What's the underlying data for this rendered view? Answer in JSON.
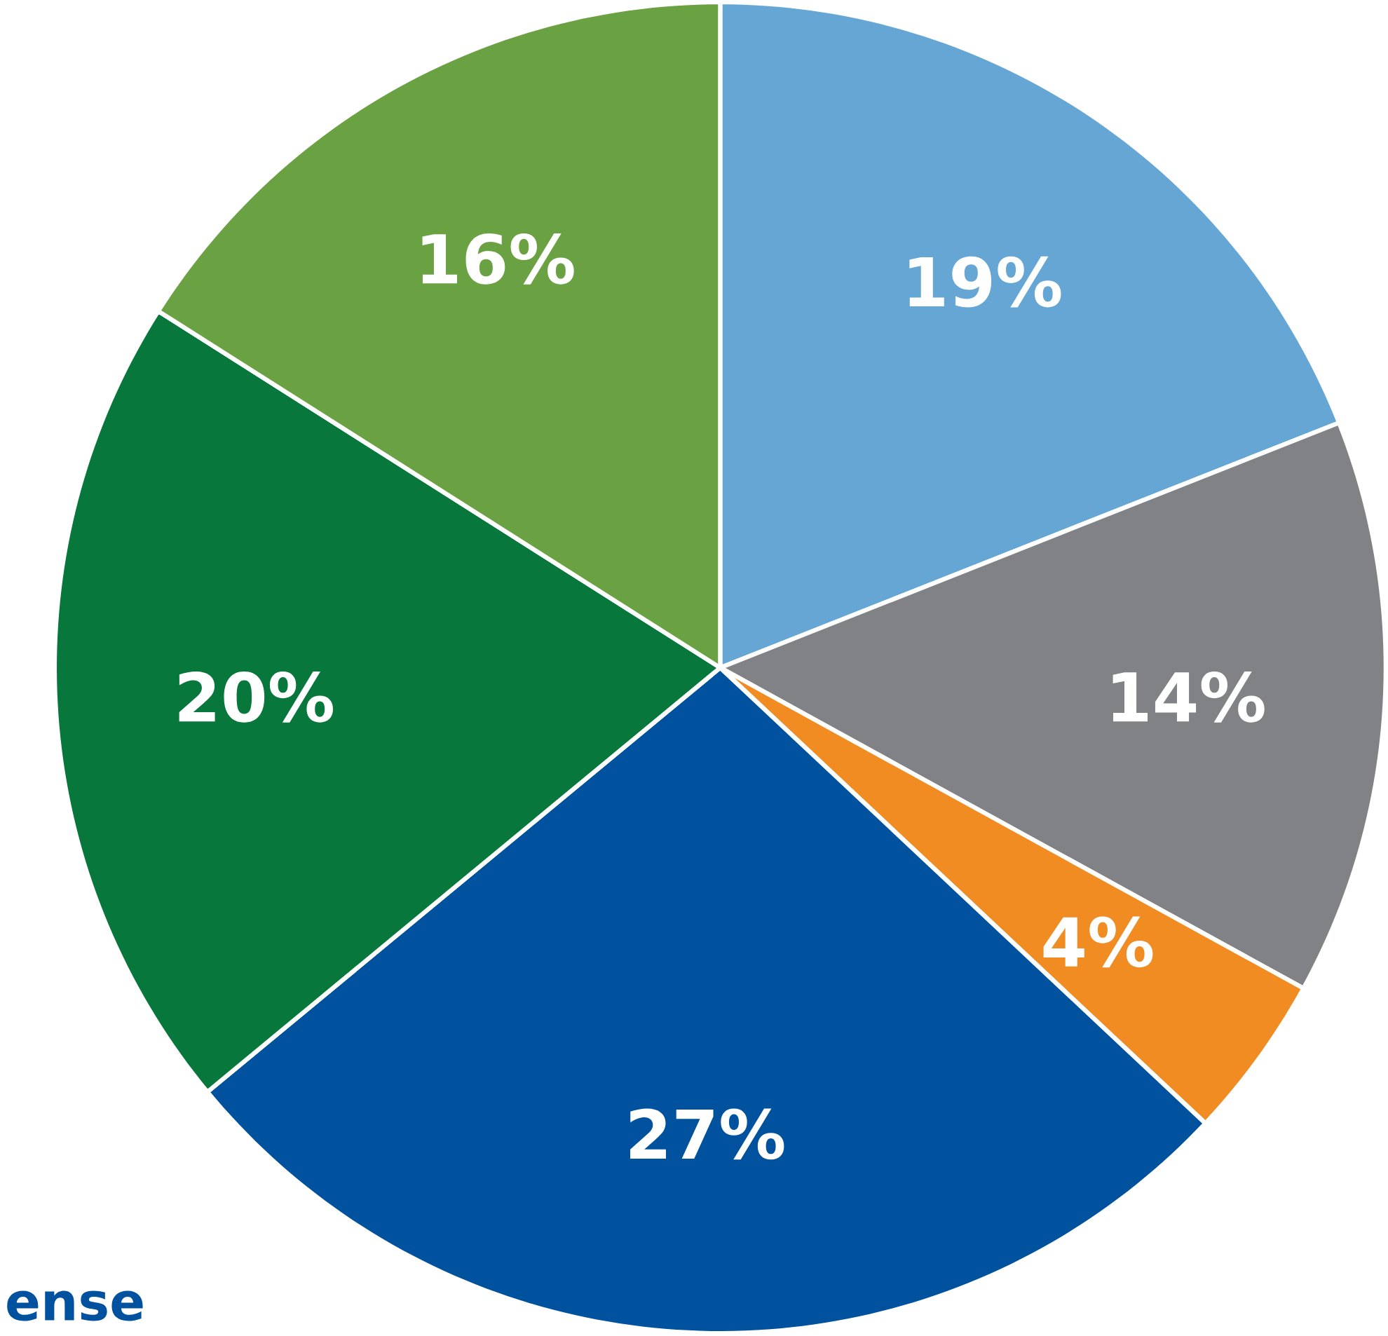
{
  "chart_data": {
    "type": "pie",
    "categories": [
      null,
      null,
      null,
      null,
      null,
      null
    ],
    "values": [
      19,
      14,
      4,
      27,
      20,
      16
    ],
    "colors": [
      "#65a6d4",
      "#818285",
      "#f08c22",
      "#00529f",
      "#07773b",
      "#6aa243"
    ],
    "value_labels": [
      "19%",
      "14%",
      "4%",
      "27%",
      "20%",
      "16%"
    ],
    "annotations": [
      "ense"
    ]
  }
}
